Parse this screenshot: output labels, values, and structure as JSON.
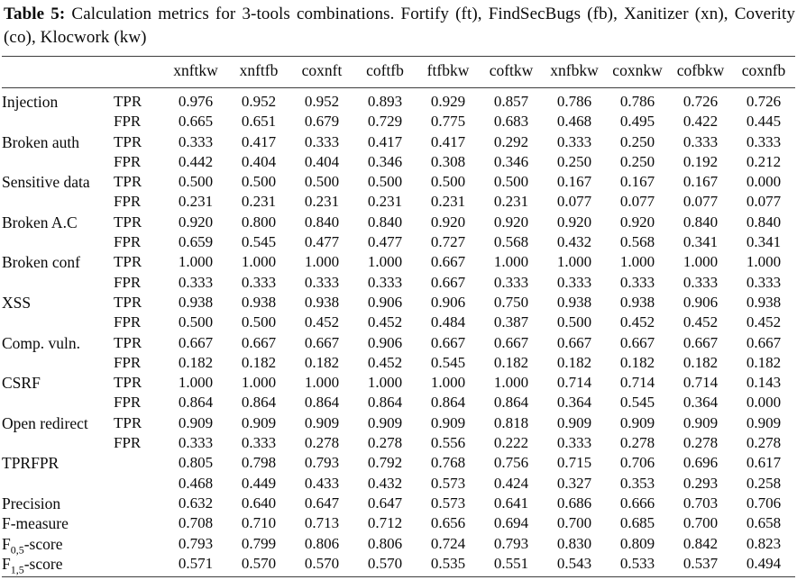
{
  "caption": {
    "label": "Table 5:",
    "text": "Calculation metrics for 3-tools combinations. Fortify (ft), FindSecBugs (fb), Xanitizer (xn), Coverity (co), Klocwork (kw)"
  },
  "table": {
    "columns": [
      "xnftkw",
      "xnftfb",
      "coxnft",
      "coftfb",
      "ftfbkw",
      "coftkw",
      "xnfbkw",
      "coxnkw",
      "cofbkw",
      "coxnfb"
    ],
    "rows": [
      {
        "category": "Injection",
        "metric": "TPR",
        "values": [
          "0.976",
          "0.952",
          "0.952",
          "0.893",
          "0.929",
          "0.857",
          "0.786",
          "0.786",
          "0.726",
          "0.726"
        ]
      },
      {
        "category": "",
        "metric": "FPR",
        "values": [
          "0.665",
          "0.651",
          "0.679",
          "0.729",
          "0.775",
          "0.683",
          "0.468",
          "0.495",
          "0.422",
          "0.445"
        ]
      },
      {
        "category": "Broken auth",
        "metric": "TPR",
        "values": [
          "0.333",
          "0.417",
          "0.333",
          "0.417",
          "0.417",
          "0.292",
          "0.333",
          "0.250",
          "0.333",
          "0.333"
        ]
      },
      {
        "category": "",
        "metric": "FPR",
        "values": [
          "0.442",
          "0.404",
          "0.404",
          "0.346",
          "0.308",
          "0.346",
          "0.250",
          "0.250",
          "0.192",
          "0.212"
        ]
      },
      {
        "category": "Sensitive data",
        "metric": "TPR",
        "values": [
          "0.500",
          "0.500",
          "0.500",
          "0.500",
          "0.500",
          "0.500",
          "0.167",
          "0.167",
          "0.167",
          "0.000"
        ]
      },
      {
        "category": "",
        "metric": "FPR",
        "values": [
          "0.231",
          "0.231",
          "0.231",
          "0.231",
          "0.231",
          "0.231",
          "0.077",
          "0.077",
          "0.077",
          "0.077"
        ]
      },
      {
        "category": "Broken A.C",
        "metric": "TPR",
        "values": [
          "0.920",
          "0.800",
          "0.840",
          "0.840",
          "0.920",
          "0.920",
          "0.920",
          "0.920",
          "0.840",
          "0.840"
        ]
      },
      {
        "category": "",
        "metric": "FPR",
        "values": [
          "0.659",
          "0.545",
          "0.477",
          "0.477",
          "0.727",
          "0.568",
          "0.432",
          "0.568",
          "0.341",
          "0.341"
        ]
      },
      {
        "category": "Broken conf",
        "metric": "TPR",
        "values": [
          "1.000",
          "1.000",
          "1.000",
          "1.000",
          "0.667",
          "1.000",
          "1.000",
          "1.000",
          "1.000",
          "1.000"
        ]
      },
      {
        "category": "",
        "metric": "FPR",
        "values": [
          "0.333",
          "0.333",
          "0.333",
          "0.333",
          "0.667",
          "0.333",
          "0.333",
          "0.333",
          "0.333",
          "0.333"
        ]
      },
      {
        "category": "XSS",
        "metric": "TPR",
        "values": [
          "0.938",
          "0.938",
          "0.938",
          "0.906",
          "0.906",
          "0.750",
          "0.938",
          "0.938",
          "0.906",
          "0.938"
        ]
      },
      {
        "category": "",
        "metric": "FPR",
        "values": [
          "0.500",
          "0.500",
          "0.452",
          "0.452",
          "0.484",
          "0.387",
          "0.500",
          "0.452",
          "0.452",
          "0.452"
        ]
      },
      {
        "category": "Comp. vuln.",
        "metric": "TPR",
        "values": [
          "0.667",
          "0.667",
          "0.667",
          "0.906",
          "0.667",
          "0.667",
          "0.667",
          "0.667",
          "0.667",
          "0.667"
        ]
      },
      {
        "category": "",
        "metric": "FPR",
        "values": [
          "0.182",
          "0.182",
          "0.182",
          "0.452",
          "0.545",
          "0.182",
          "0.182",
          "0.182",
          "0.182",
          "0.182"
        ]
      },
      {
        "category": "CSRF",
        "metric": "TPR",
        "values": [
          "1.000",
          "1.000",
          "1.000",
          "1.000",
          "1.000",
          "1.000",
          "0.714",
          "0.714",
          "0.714",
          "0.143"
        ]
      },
      {
        "category": "",
        "metric": "FPR",
        "values": [
          "0.864",
          "0.864",
          "0.864",
          "0.864",
          "0.864",
          "0.864",
          "0.364",
          "0.545",
          "0.364",
          "0.000"
        ]
      },
      {
        "category": "Open redirect",
        "metric": "TPR",
        "values": [
          "0.909",
          "0.909",
          "0.909",
          "0.909",
          "0.909",
          "0.818",
          "0.909",
          "0.909",
          "0.909",
          "0.909"
        ]
      },
      {
        "category": "",
        "metric": "FPR",
        "values": [
          "0.333",
          "0.333",
          "0.278",
          "0.278",
          "0.556",
          "0.222",
          "0.333",
          "0.278",
          "0.278",
          "0.278"
        ]
      },
      {
        "category": "TPRFPR",
        "metric": "",
        "values": [
          "0.805",
          "0.798",
          "0.793",
          "0.792",
          "0.768",
          "0.756",
          "0.715",
          "0.706",
          "0.696",
          "0.617"
        ]
      },
      {
        "category": "",
        "metric": "",
        "values": [
          "0.468",
          "0.449",
          "0.433",
          "0.432",
          "0.573",
          "0.424",
          "0.327",
          "0.353",
          "0.293",
          "0.258"
        ]
      },
      {
        "category": "Precision",
        "metric": "",
        "values": [
          "0.632",
          "0.640",
          "0.647",
          "0.647",
          "0.573",
          "0.641",
          "0.686",
          "0.666",
          "0.703",
          "0.706"
        ]
      },
      {
        "category": "F-measure",
        "metric": "",
        "values": [
          "0.708",
          "0.710",
          "0.713",
          "0.712",
          "0.656",
          "0.694",
          "0.700",
          "0.685",
          "0.700",
          "0.658"
        ]
      },
      {
        "category": "F",
        "category_sub": "0,5",
        "category_tail": "-score",
        "metric": "",
        "values": [
          "0.793",
          "0.799",
          "0.806",
          "0.806",
          "0.724",
          "0.793",
          "0.830",
          "0.809",
          "0.842",
          "0.823"
        ]
      },
      {
        "category": "F",
        "category_sub": "1,5",
        "category_tail": "-score",
        "metric": "",
        "values": [
          "0.571",
          "0.570",
          "0.570",
          "0.570",
          "0.535",
          "0.551",
          "0.543",
          "0.533",
          "0.537",
          "0.494"
        ]
      }
    ]
  }
}
